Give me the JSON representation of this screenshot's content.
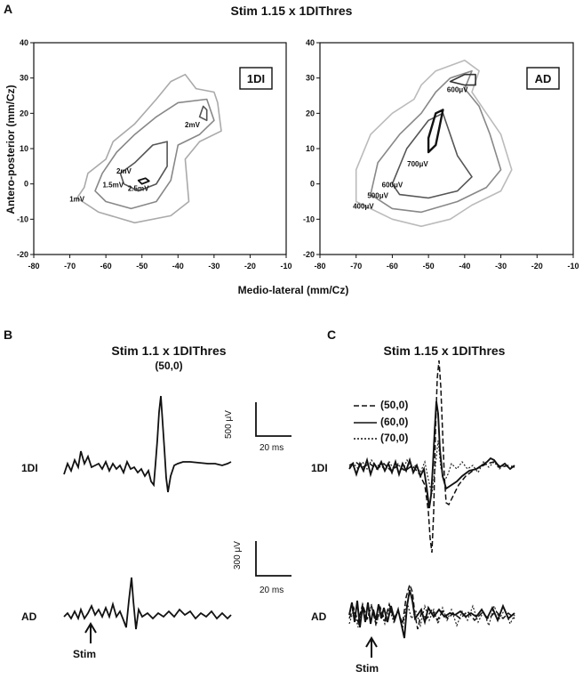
{
  "panel_a": {
    "letter": "A",
    "title": "Stim 1.15 x 1DIThres",
    "y_label": "Antero-posterior (mm/Cz)",
    "x_label": "Medio-lateral (mm/Cz)",
    "x_ticks": [
      "-80",
      "-70",
      "-60",
      "-50",
      "-40",
      "-30",
      "-20",
      "-10"
    ],
    "y_ticks": [
      "40",
      "30",
      "20",
      "10",
      "0",
      "-10",
      "-20"
    ],
    "maps": [
      {
        "label": "1DI",
        "contours": [
          {
            "level": "1mV",
            "color": "#aaaaaa",
            "width": 1.6,
            "points": [
              [
                -68,
                -4
              ],
              [
                -66,
                -1
              ],
              [
                -65,
                3
              ],
              [
                -60,
                7
              ],
              [
                -58,
                12
              ],
              [
                -52,
                17
              ],
              [
                -46,
                24
              ],
              [
                -42,
                29
              ],
              [
                -38,
                31
              ],
              [
                -35,
                27
              ],
              [
                -30,
                26
              ],
              [
                -29,
                23
              ],
              [
                -28,
                15
              ],
              [
                -34,
                12
              ],
              [
                -38,
                7
              ],
              [
                -37,
                -5
              ],
              [
                -42,
                -9
              ],
              [
                -52,
                -11
              ],
              [
                -62,
                -8
              ],
              [
                -68,
                -4
              ]
            ]
          },
          {
            "level": "1.5mV",
            "color": "#888888",
            "width": 1.6,
            "points": [
              [
                -63,
                -2
              ],
              [
                -61,
                3
              ],
              [
                -57,
                9
              ],
              [
                -52,
                14
              ],
              [
                -46,
                19
              ],
              [
                -40,
                23
              ],
              [
                -32,
                24
              ],
              [
                -30,
                18
              ],
              [
                -34,
                14
              ],
              [
                -40,
                11
              ],
              [
                -42,
                1
              ],
              [
                -46,
                -5
              ],
              [
                -53,
                -7
              ],
              [
                -60,
                -5
              ],
              [
                -63,
                -2
              ]
            ]
          },
          {
            "level": "2mV",
            "color": "#555555",
            "width": 1.6,
            "points": [
              [
                -56,
                3
              ],
              [
                -52,
                6
              ],
              [
                -47,
                11
              ],
              [
                -43,
                12
              ],
              [
                -43,
                5
              ],
              [
                -46,
                0
              ],
              [
                -51,
                -2
              ],
              [
                -55,
                0
              ],
              [
                -56,
                3
              ]
            ]
          },
          {
            "level": "2.5mV",
            "color": "#111111",
            "width": 1.8,
            "points": [
              [
                -51,
                1
              ],
              [
                -49,
                1.6
              ],
              [
                -48,
                0.8
              ],
              [
                -50,
                0
              ],
              [
                -51,
                1
              ]
            ]
          },
          {
            "level": "",
            "color": "#555555",
            "width": 1.6,
            "points": [
              [
                -34,
                19
              ],
              [
                -33,
                22
              ],
              [
                -32,
                21
              ],
              [
                -32,
                18
              ],
              [
                -34,
                19
              ]
            ]
          }
        ],
        "labels": [
          {
            "text": "2mV",
            "x": -36,
            "y": 16
          },
          {
            "text": "2mV",
            "x": -55,
            "y": 3
          },
          {
            "text": "1.5mV",
            "x": -58,
            "y": -1
          },
          {
            "text": "2.5mV",
            "x": -51,
            "y": -2
          },
          {
            "text": "1mV",
            "x": -68,
            "y": -5
          }
        ]
      },
      {
        "label": "AD",
        "contours": [
          {
            "level": "400μV",
            "color": "#bbbbbb",
            "width": 1.6,
            "points": [
              [
                -70,
                -5
              ],
              [
                -70,
                4
              ],
              [
                -66,
                14
              ],
              [
                -60,
                20
              ],
              [
                -54,
                24
              ],
              [
                -52,
                28
              ],
              [
                -48,
                32
              ],
              [
                -40,
                35
              ],
              [
                -36,
                32
              ],
              [
                -38,
                26
              ],
              [
                -34,
                20
              ],
              [
                -30,
                14
              ],
              [
                -27,
                4
              ],
              [
                -30,
                -2
              ],
              [
                -38,
                -6
              ],
              [
                -44,
                -10
              ],
              [
                -52,
                -12
              ],
              [
                -60,
                -10
              ],
              [
                -70,
                -5
              ]
            ]
          },
          {
            "level": "500μV",
            "color": "#888888",
            "width": 1.6,
            "points": [
              [
                -66,
                -3
              ],
              [
                -64,
                6
              ],
              [
                -58,
                14
              ],
              [
                -52,
                20
              ],
              [
                -48,
                26
              ],
              [
                -44,
                30
              ],
              [
                -38,
                32
              ],
              [
                -40,
                27
              ],
              [
                -36,
                22
              ],
              [
                -33,
                14
              ],
              [
                -30,
                4
              ],
              [
                -34,
                -1
              ],
              [
                -42,
                -5
              ],
              [
                -52,
                -8
              ],
              [
                -60,
                -7
              ],
              [
                -66,
                -3
              ]
            ]
          },
          {
            "level": "600μV",
            "color": "#555555",
            "width": 1.6,
            "points": [
              [
                -60,
                0
              ],
              [
                -56,
                10
              ],
              [
                -50,
                18
              ],
              [
                -46,
                20
              ],
              [
                -44,
                14
              ],
              [
                -42,
                8
              ],
              [
                -38,
                2
              ],
              [
                -42,
                -2
              ],
              [
                -50,
                -4
              ],
              [
                -58,
                -3
              ],
              [
                -60,
                0
              ]
            ]
          },
          {
            "level": "700μV",
            "color": "#111111",
            "width": 2.4,
            "points": [
              [
                -50,
                9
              ],
              [
                -50,
                13
              ],
              [
                -48,
                20
              ],
              [
                -46,
                21
              ],
              [
                -47,
                16
              ],
              [
                -48,
                11
              ],
              [
                -50,
                9
              ]
            ]
          },
          {
            "level": "600μV",
            "color": "#333333",
            "width": 1.6,
            "points": [
              [
                -44,
                29
              ],
              [
                -40,
                31
              ],
              [
                -37,
                31
              ],
              [
                -37,
                28
              ],
              [
                -40,
                28
              ],
              [
                -44,
                29
              ]
            ]
          }
        ],
        "labels": [
          {
            "text": "600μV",
            "x": -42,
            "y": 26
          },
          {
            "text": "700μV",
            "x": -53,
            "y": 5
          },
          {
            "text": "600μV",
            "x": -60,
            "y": -1
          },
          {
            "text": "500μV",
            "x": -64,
            "y": -4
          },
          {
            "text": "400μV",
            "x": -68,
            "y": -7
          }
        ]
      }
    ]
  },
  "panel_b": {
    "letter": "B",
    "title": "Stim 1.1 x 1DIThres",
    "subtitle": "(50,0)",
    "rows": [
      "1DI",
      "AD"
    ],
    "stim_label": "Stim"
  },
  "panel_c": {
    "letter": "C",
    "title": "Stim 1.15 x 1DIThres",
    "legend": [
      {
        "label": "(50,0)",
        "dash": "6,3"
      },
      {
        "label": "(60,0)",
        "dash": ""
      },
      {
        "label": "(70,0)",
        "dash": "2,2"
      }
    ],
    "rows": [
      "1DI",
      "AD"
    ],
    "stim_label": "Stim"
  },
  "scale_bars": [
    {
      "amplitude": "500 μV",
      "time": "20 ms"
    },
    {
      "amplitude": "300 μV",
      "time": "20 ms"
    }
  ]
}
